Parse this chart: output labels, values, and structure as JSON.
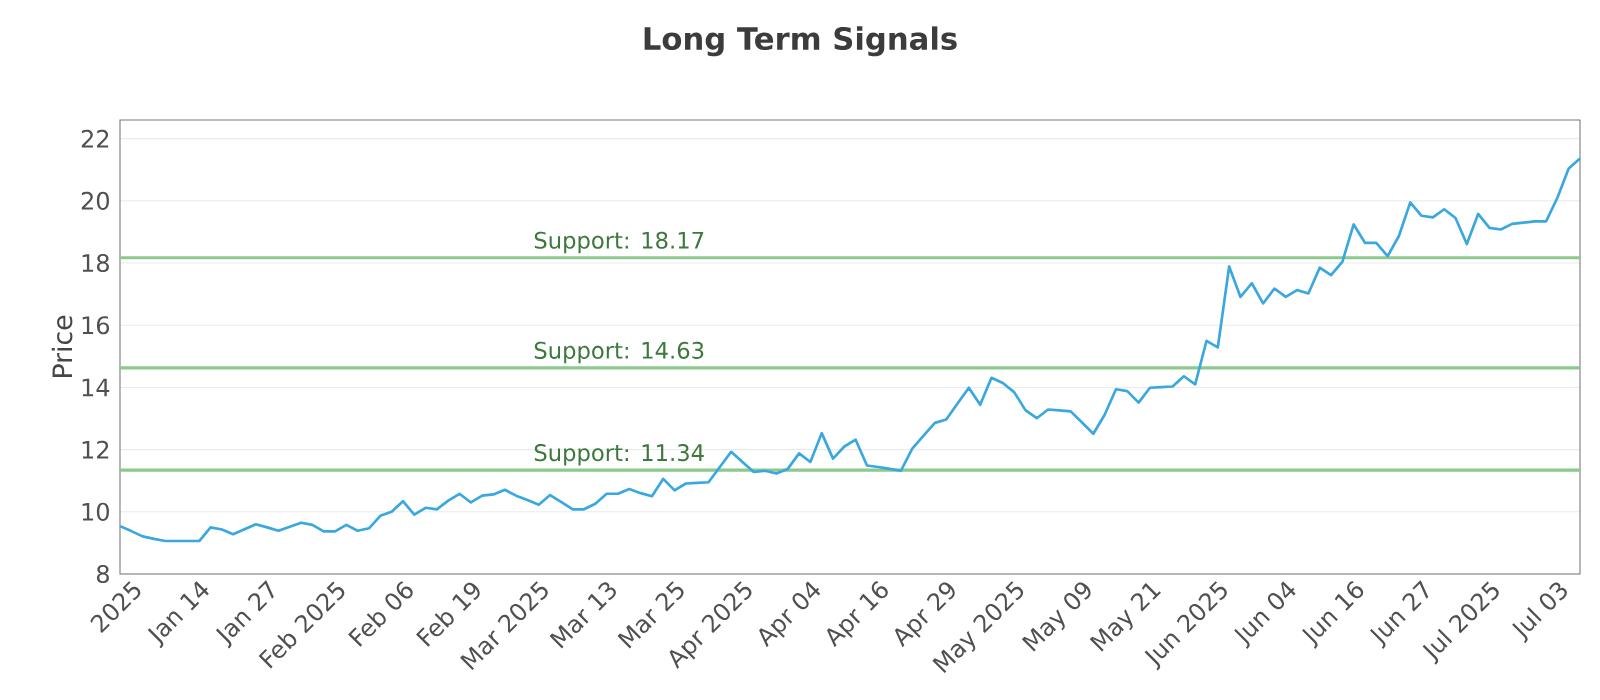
{
  "chart_data": {
    "type": "line",
    "title": "Long Term Signals",
    "ylabel": "Price",
    "categories": [
      null,
      "2025",
      null,
      null,
      null,
      null,
      null,
      "Jan 14",
      null,
      null,
      null,
      null,
      null,
      "Jan 27",
      null,
      null,
      null,
      null,
      null,
      "Feb 2025",
      null,
      null,
      null,
      null,
      null,
      "Feb 06",
      null,
      null,
      null,
      null,
      null,
      "Feb 19",
      null,
      null,
      null,
      null,
      null,
      "Mar 2025",
      null,
      null,
      null,
      null,
      null,
      "Mar 13",
      null,
      null,
      null,
      null,
      null,
      "Mar 25",
      null,
      null,
      null,
      null,
      null,
      "Apr 2025",
      null,
      null,
      null,
      null,
      null,
      "Apr 04",
      null,
      null,
      null,
      null,
      null,
      "Apr 16",
      null,
      null,
      null,
      null,
      null,
      "Apr 29",
      null,
      null,
      null,
      null,
      null,
      "May 2025",
      null,
      null,
      null,
      null,
      null,
      "May 09",
      null,
      null,
      null,
      null,
      null,
      "May 21",
      null,
      null,
      null,
      null,
      null,
      "Jun 2025",
      null,
      null,
      null,
      null,
      null,
      "Jun 04",
      null,
      null,
      null,
      null,
      null,
      "Jun 16",
      null,
      null,
      null,
      null,
      null,
      "Jun 27",
      null,
      null,
      null,
      null,
      null,
      "Jul 2025",
      null,
      null,
      null,
      null,
      null,
      "Jul 03",
      null,
      null
    ],
    "series": [
      {
        "color": "#3aa8df",
        "values": [
          9.54,
          9.38,
          9.21,
          9.13,
          9.06,
          9.06,
          9.06,
          9.06,
          9.5,
          9.43,
          9.28,
          9.44,
          9.6,
          9.5,
          9.39,
          9.52,
          9.65,
          9.58,
          9.37,
          9.37,
          9.58,
          9.39,
          9.47,
          9.87,
          10.0,
          10.34,
          9.91,
          10.13,
          10.08,
          10.36,
          10.58,
          10.3,
          10.52,
          10.56,
          10.71,
          10.52,
          10.38,
          10.23,
          10.54,
          10.31,
          10.08,
          10.08,
          10.26,
          10.58,
          10.58,
          10.73,
          10.6,
          10.5,
          11.06,
          10.69,
          10.91,
          10.93,
          10.95,
          11.44,
          11.93,
          11.6,
          11.28,
          11.32,
          11.23,
          11.38,
          11.88,
          11.6,
          12.53,
          11.71,
          12.1,
          12.32,
          11.49,
          11.44,
          11.38,
          11.32,
          12.03,
          12.45,
          12.86,
          12.97,
          13.48,
          13.99,
          13.44,
          14.31,
          14.14,
          13.85,
          13.27,
          13.01,
          13.29,
          13.26,
          13.23,
          12.87,
          12.51,
          13.12,
          13.94,
          13.88,
          13.51,
          13.99,
          14.01,
          14.03,
          14.36,
          14.1,
          15.5,
          15.29,
          17.89,
          16.91,
          17.35,
          16.7,
          17.18,
          16.91,
          17.13,
          17.02,
          17.85,
          17.61,
          18.04,
          19.24,
          18.65,
          18.65,
          18.22,
          18.87,
          19.95,
          19.52,
          19.47,
          19.73,
          19.45,
          18.61,
          19.58,
          19.13,
          19.08,
          19.26,
          19.3,
          19.34,
          19.34,
          20.1,
          21.04,
          21.36
        ]
      }
    ],
    "ylim": [
      8,
      22.6
    ],
    "yticks": [
      8,
      10,
      12,
      14,
      16,
      18,
      20,
      22
    ],
    "ref_lines": [
      {
        "axis": "y",
        "value": 18.17,
        "label": "Support: 18.17",
        "color": "#8cc98c"
      },
      {
        "axis": "y",
        "value": 14.63,
        "label": "Support: 14.63",
        "color": "#8cc98c"
      },
      {
        "axis": "y",
        "value": 11.34,
        "label": "Support: 11.34",
        "color": "#8cc98c"
      }
    ],
    "grid": "y",
    "marker": "none",
    "line_style": "solid"
  }
}
